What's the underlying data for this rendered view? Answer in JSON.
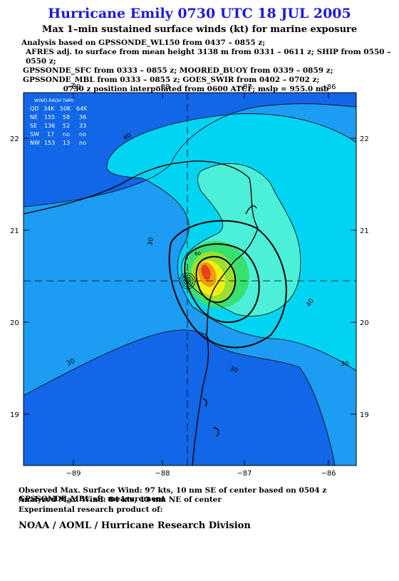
{
  "header": {
    "title": "Hurricane Emily 0730 UTC 18 JUL 2005",
    "subtitle": "Max 1–min sustained surface winds (kt) for marine exposure",
    "analysis_lines": [
      "Analysis based on  GPSSONDE_WL150 from 0437 – 0855 z;",
      "AFRES adj. to surface from mean height 3138 m from 0331 – 0611 z;  SHIP from 0550 – 0550 z;",
      "GPSSONDE_SFC from 0333 – 0855 z;  MOORED_BUOY from 0339 – 0859 z;",
      "GPSSONDE_MBL from 0333 – 0855 z;  GOES_SWIR from 0402 – 0702 z;"
    ],
    "position_line": "0730 z position interpolated from 0600 ATCF; mslp = 955.0 mb"
  },
  "map": {
    "lon_ticks": [
      "−89",
      "−88",
      "−87",
      "−86"
    ],
    "lat_ticks": [
      "22",
      "21",
      "20",
      "19"
    ],
    "contour_labels": [
      "40",
      "30",
      "30",
      "30",
      "40",
      "30",
      "60"
    ],
    "wind_radii": {
      "title": "WIND RADII (NM)",
      "header": [
        "QD",
        "34K",
        "50K",
        "64K"
      ],
      "rows": [
        [
          "NE",
          "155",
          "58",
          "36"
        ],
        [
          "SE",
          "136",
          "52",
          "33"
        ],
        [
          "SW",
          "17",
          "no",
          "no"
        ],
        [
          "NW",
          "153",
          "13",
          "no"
        ]
      ]
    },
    "colors": {
      "water_deep": "#1266e8",
      "c30": "#1c9cf2",
      "c40": "#00d4f2",
      "c50": "#4cf0d8",
      "c60": "#38e070",
      "c70": "#9ae030",
      "c80": "#f2ee10",
      "c90": "#f29a10",
      "c100": "#e84018",
      "land": "#000000"
    }
  },
  "footer": {
    "observed": "Observed Max. Surface Wind: 97 kts, 10 nm SE of center based on 0504 z GPSSONDE_MBL sfc measurement",
    "analyzed": "Analyzed Max. Wind: 84 kts, 13 nm NE of center",
    "experimental": "Experimental research product of:",
    "org": "NOAA / AOML / Hurricane Research Division"
  }
}
